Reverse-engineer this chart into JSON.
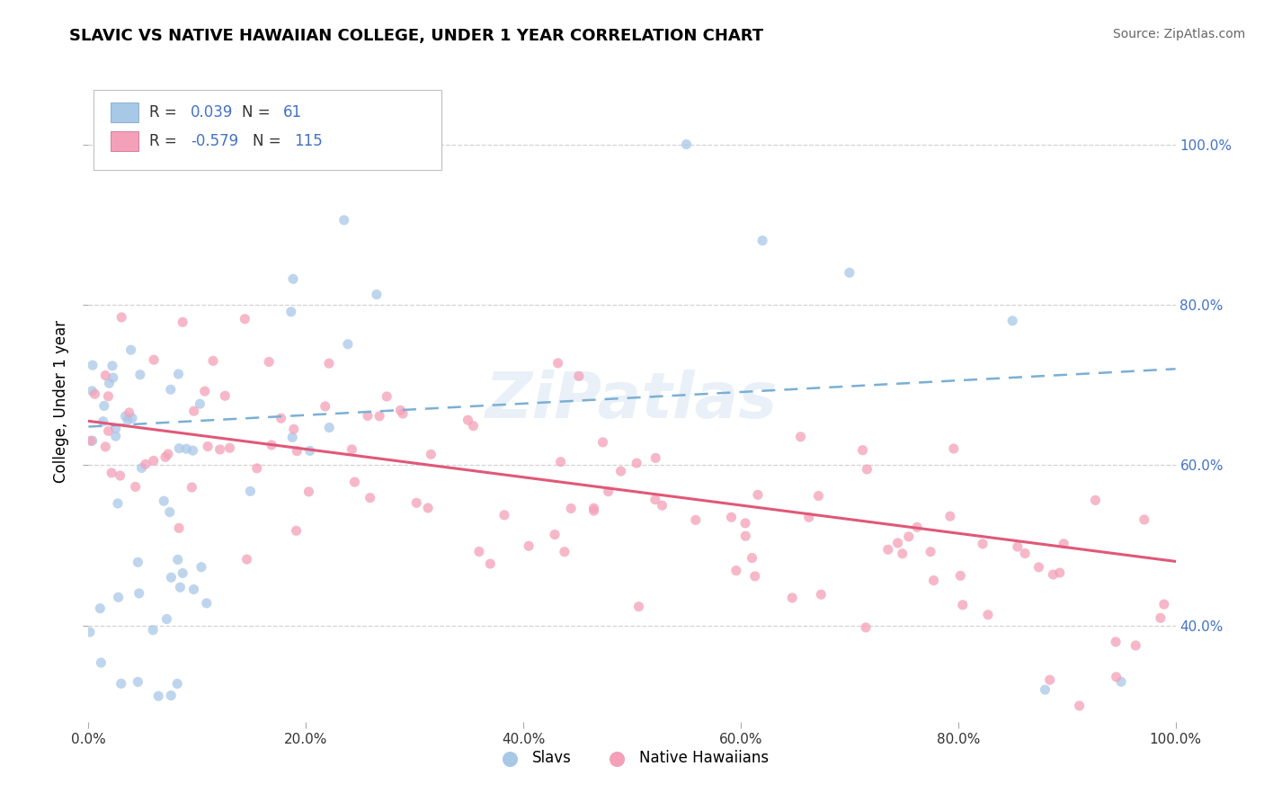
{
  "title": "SLAVIC VS NATIVE HAWAIIAN COLLEGE, UNDER 1 YEAR CORRELATION CHART",
  "source": "Source: ZipAtlas.com",
  "ylabel": "College, Under 1 year",
  "slavs_color": "#a8c8e8",
  "slavs_line_color": "#7bafd4",
  "hawaiians_color": "#f4a0b8",
  "hawaiians_line_color": "#e05878",
  "background_color": "#ffffff",
  "grid_color": "#c8c8c8",
  "watermark": "ZiPatlas",
  "right_tick_color": "#4472c4",
  "legend_R_N_color": "#4472c4",
  "legend_label_color": "#333333",
  "slavs_R": "0.039",
  "slavs_N": "61",
  "hawaiians_R": "-0.579",
  "hawaiians_N": "115",
  "xlim": [
    0.0,
    1.0
  ],
  "ylim": [
    0.28,
    1.08
  ],
  "x_ticks": [
    0.0,
    0.2,
    0.4,
    0.6,
    0.8,
    1.0
  ],
  "x_tick_labels": [
    "0.0%",
    "20.0%",
    "40.0%",
    "60.0%",
    "80.0%",
    "100.0%"
  ],
  "y_ticks": [
    0.4,
    0.6,
    0.8,
    1.0
  ],
  "y_tick_labels": [
    "40.0%",
    "60.0%",
    "80.0%",
    "100.0%"
  ]
}
